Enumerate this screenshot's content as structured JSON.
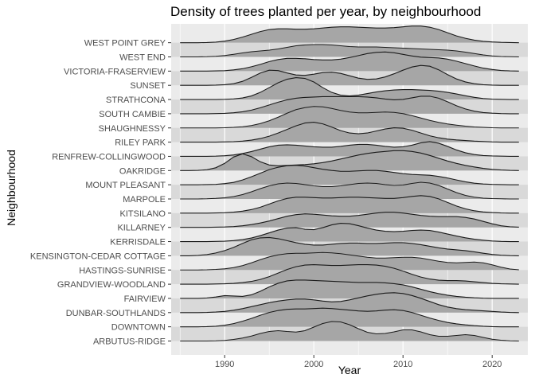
{
  "chart_data": {
    "type": "ridgeline",
    "title": "Density of trees planted per year, by neighbourhood",
    "xlabel": "Year",
    "ylabel": "Neighbourhood",
    "xlim": [
      1984,
      2024
    ],
    "x_ticks": [
      1990,
      2000,
      2010,
      2020
    ],
    "x_tick_labels": [
      "1990",
      "2000",
      "2010",
      "2020"
    ],
    "grid": true,
    "colors": {
      "panel_background": "#ebebeb",
      "band": "#d9d9d9",
      "grid": "#ffffff",
      "fill": "#a6a6a6",
      "line": "#1a1a1a",
      "axis_text": "#4d4d4d"
    },
    "x": [
      1985,
      1986,
      1987,
      1988,
      1989,
      1990,
      1991,
      1992,
      1993,
      1994,
      1995,
      1996,
      1997,
      1998,
      1999,
      2000,
      2001,
      2002,
      2003,
      2004,
      2005,
      2006,
      2007,
      2008,
      2009,
      2010,
      2011,
      2012,
      2013,
      2014,
      2015,
      2016,
      2017,
      2018,
      2019,
      2020,
      2021,
      2022,
      2023
    ],
    "categories": [
      "ARBUTUS-RIDGE",
      "DOWNTOWN",
      "DUNBAR-SOUTHLANDS",
      "FAIRVIEW",
      "GRANDVIEW-WOODLAND",
      "HASTINGS-SUNRISE",
      "KENSINGTON-CEDAR COTTAGE",
      "KERRISDALE",
      "KILLARNEY",
      "KITSILANO",
      "MARPOLE",
      "MOUNT PLEASANT",
      "OAKRIDGE",
      "RENFREW-COLLINGWOOD",
      "RILEY PARK",
      "SHAUGHNESSY",
      "SOUTH CAMBIE",
      "STRATHCONA",
      "SUNSET",
      "VICTORIA-FRASERVIEW",
      "WEST END",
      "WEST POINT GREY"
    ],
    "series": [
      {
        "name": "ARBUTUS-RIDGE",
        "values": [
          0.0,
          0.0,
          0.0,
          0.0,
          0.01,
          0.03,
          0.08,
          0.15,
          0.25,
          0.38,
          0.48,
          0.52,
          0.48,
          0.45,
          0.52,
          0.7,
          0.88,
          0.98,
          0.96,
          0.82,
          0.62,
          0.44,
          0.36,
          0.38,
          0.46,
          0.56,
          0.56,
          0.46,
          0.32,
          0.24,
          0.24,
          0.28,
          0.32,
          0.28,
          0.18,
          0.09,
          0.04,
          0.01,
          0.0
        ]
      },
      {
        "name": "DOWNTOWN",
        "values": [
          0.0,
          0.0,
          0.0,
          0.01,
          0.03,
          0.08,
          0.16,
          0.28,
          0.42,
          0.58,
          0.72,
          0.82,
          0.88,
          0.9,
          0.9,
          0.92,
          0.94,
          0.92,
          0.88,
          0.84,
          0.8,
          0.78,
          0.8,
          0.84,
          0.86,
          0.82,
          0.72,
          0.58,
          0.44,
          0.32,
          0.22,
          0.15,
          0.1,
          0.06,
          0.03,
          0.01,
          0.0,
          0.0,
          0.0
        ]
      },
      {
        "name": "DUNBAR-SOUTHLANDS",
        "values": [
          0.0,
          0.0,
          0.0,
          0.01,
          0.03,
          0.06,
          0.12,
          0.2,
          0.3,
          0.4,
          0.5,
          0.58,
          0.64,
          0.68,
          0.68,
          0.64,
          0.58,
          0.54,
          0.56,
          0.64,
          0.74,
          0.84,
          0.92,
          0.98,
          1.0,
          0.96,
          0.86,
          0.72,
          0.56,
          0.4,
          0.28,
          0.2,
          0.15,
          0.12,
          0.09,
          0.06,
          0.03,
          0.01,
          0.0
        ]
      },
      {
        "name": "FAIRVIEW",
        "values": [
          0.0,
          0.0,
          0.0,
          0.02,
          0.07,
          0.14,
          0.12,
          0.1,
          0.18,
          0.36,
          0.58,
          0.76,
          0.88,
          0.92,
          0.92,
          0.9,
          0.88,
          0.86,
          0.84,
          0.82,
          0.8,
          0.8,
          0.8,
          0.78,
          0.74,
          0.68,
          0.58,
          0.46,
          0.34,
          0.24,
          0.16,
          0.1,
          0.06,
          0.03,
          0.01,
          0.0,
          0.0,
          0.0,
          0.0
        ]
      },
      {
        "name": "GRANDVIEW-WOODLAND",
        "values": [
          0.0,
          0.0,
          0.0,
          0.0,
          0.01,
          0.02,
          0.04,
          0.08,
          0.14,
          0.24,
          0.38,
          0.56,
          0.74,
          0.88,
          0.96,
          0.98,
          0.96,
          0.94,
          0.94,
          0.96,
          0.98,
          0.98,
          0.96,
          0.9,
          0.8,
          0.66,
          0.5,
          0.36,
          0.26,
          0.2,
          0.18,
          0.18,
          0.16,
          0.12,
          0.08,
          0.04,
          0.02,
          0.01,
          0.0
        ]
      },
      {
        "name": "HASTINGS-SUNRISE",
        "values": [
          0.0,
          0.0,
          0.0,
          0.01,
          0.03,
          0.06,
          0.12,
          0.22,
          0.36,
          0.52,
          0.66,
          0.76,
          0.82,
          0.84,
          0.84,
          0.86,
          0.88,
          0.86,
          0.82,
          0.76,
          0.7,
          0.64,
          0.6,
          0.6,
          0.62,
          0.64,
          0.64,
          0.6,
          0.52,
          0.44,
          0.38,
          0.36,
          0.38,
          0.4,
          0.36,
          0.26,
          0.14,
          0.05,
          0.01
        ]
      },
      {
        "name": "KENSINGTON-CEDAR COTTAGE",
        "values": [
          0.0,
          0.0,
          0.02,
          0.06,
          0.14,
          0.26,
          0.42,
          0.62,
          0.8,
          0.9,
          0.92,
          0.86,
          0.76,
          0.66,
          0.58,
          0.54,
          0.54,
          0.58,
          0.62,
          0.64,
          0.64,
          0.62,
          0.62,
          0.64,
          0.66,
          0.66,
          0.62,
          0.56,
          0.48,
          0.4,
          0.34,
          0.3,
          0.26,
          0.2,
          0.13,
          0.07,
          0.03,
          0.01,
          0.0
        ]
      },
      {
        "name": "KERRISDALE",
        "values": [
          0.0,
          0.0,
          0.0,
          0.0,
          0.01,
          0.02,
          0.05,
          0.1,
          0.18,
          0.3,
          0.44,
          0.58,
          0.68,
          0.7,
          0.62,
          0.6,
          0.7,
          0.84,
          0.92,
          0.9,
          0.8,
          0.68,
          0.58,
          0.52,
          0.5,
          0.52,
          0.56,
          0.58,
          0.56,
          0.48,
          0.38,
          0.28,
          0.19,
          0.12,
          0.07,
          0.03,
          0.01,
          0.0,
          0.0
        ]
      },
      {
        "name": "KILLARNEY",
        "values": [
          0.0,
          0.0,
          0.0,
          0.0,
          0.01,
          0.02,
          0.04,
          0.08,
          0.14,
          0.22,
          0.32,
          0.44,
          0.56,
          0.64,
          0.68,
          0.66,
          0.62,
          0.58,
          0.56,
          0.56,
          0.6,
          0.66,
          0.72,
          0.76,
          0.76,
          0.72,
          0.66,
          0.6,
          0.56,
          0.54,
          0.54,
          0.54,
          0.5,
          0.42,
          0.3,
          0.18,
          0.08,
          0.03,
          0.01
        ]
      },
      {
        "name": "KITSILANO",
        "values": [
          0.0,
          0.0,
          0.0,
          0.0,
          0.01,
          0.02,
          0.05,
          0.1,
          0.18,
          0.3,
          0.46,
          0.62,
          0.74,
          0.8,
          0.8,
          0.78,
          0.76,
          0.76,
          0.78,
          0.8,
          0.8,
          0.78,
          0.76,
          0.74,
          0.74,
          0.78,
          0.84,
          0.88,
          0.84,
          0.72,
          0.54,
          0.36,
          0.22,
          0.12,
          0.06,
          0.03,
          0.01,
          0.0,
          0.0
        ]
      },
      {
        "name": "MARPOLE",
        "values": [
          0.0,
          0.0,
          0.0,
          0.01,
          0.03,
          0.06,
          0.12,
          0.22,
          0.36,
          0.52,
          0.66,
          0.76,
          0.8,
          0.78,
          0.72,
          0.66,
          0.62,
          0.62,
          0.66,
          0.72,
          0.78,
          0.8,
          0.78,
          0.72,
          0.68,
          0.7,
          0.78,
          0.84,
          0.8,
          0.68,
          0.5,
          0.32,
          0.18,
          0.09,
          0.04,
          0.02,
          0.01,
          0.0,
          0.0
        ]
      },
      {
        "name": "MOUNT PLEASANT",
        "values": [
          0.0,
          0.0,
          0.0,
          0.01,
          0.02,
          0.06,
          0.12,
          0.24,
          0.4,
          0.58,
          0.76,
          0.88,
          0.96,
          0.98,
          0.94,
          0.86,
          0.78,
          0.72,
          0.68,
          0.68,
          0.7,
          0.72,
          0.72,
          0.68,
          0.62,
          0.56,
          0.52,
          0.5,
          0.48,
          0.42,
          0.34,
          0.24,
          0.15,
          0.08,
          0.04,
          0.02,
          0.01,
          0.0,
          0.0
        ]
      },
      {
        "name": "OAKRIDGE",
        "values": [
          0.0,
          0.0,
          0.01,
          0.04,
          0.14,
          0.36,
          0.68,
          0.84,
          0.7,
          0.44,
          0.28,
          0.24,
          0.26,
          0.28,
          0.3,
          0.34,
          0.4,
          0.48,
          0.58,
          0.68,
          0.78,
          0.86,
          0.92,
          0.96,
          1.0,
          1.0,
          0.96,
          0.88,
          0.76,
          0.62,
          0.48,
          0.36,
          0.26,
          0.18,
          0.11,
          0.06,
          0.03,
          0.01,
          0.0
        ]
      },
      {
        "name": "RENFREW-COLLINGWOOD",
        "values": [
          0.0,
          0.0,
          0.0,
          0.0,
          0.01,
          0.03,
          0.07,
          0.14,
          0.24,
          0.36,
          0.48,
          0.56,
          0.58,
          0.56,
          0.52,
          0.48,
          0.46,
          0.46,
          0.5,
          0.56,
          0.6,
          0.6,
          0.56,
          0.5,
          0.46,
          0.48,
          0.56,
          0.68,
          0.74,
          0.66,
          0.5,
          0.32,
          0.18,
          0.09,
          0.04,
          0.02,
          0.01,
          0.0,
          0.0
        ]
      },
      {
        "name": "RILEY PARK",
        "values": [
          0.0,
          0.0,
          0.0,
          0.0,
          0.0,
          0.01,
          0.02,
          0.05,
          0.1,
          0.18,
          0.3,
          0.46,
          0.64,
          0.82,
          0.96,
          1.0,
          0.92,
          0.76,
          0.58,
          0.46,
          0.42,
          0.46,
          0.56,
          0.66,
          0.72,
          0.7,
          0.6,
          0.46,
          0.32,
          0.22,
          0.15,
          0.11,
          0.08,
          0.05,
          0.03,
          0.01,
          0.0,
          0.0,
          0.0
        ]
      },
      {
        "name": "SHAUGHNESSY",
        "values": [
          0.0,
          0.0,
          0.0,
          0.0,
          0.0,
          0.01,
          0.03,
          0.06,
          0.12,
          0.22,
          0.36,
          0.54,
          0.74,
          0.92,
          1.02,
          1.08,
          1.06,
          0.98,
          0.88,
          0.8,
          0.76,
          0.76,
          0.78,
          0.8,
          0.78,
          0.72,
          0.62,
          0.5,
          0.38,
          0.28,
          0.2,
          0.14,
          0.09,
          0.05,
          0.03,
          0.01,
          0.0,
          0.0,
          0.0
        ]
      },
      {
        "name": "SOUTH CAMBIE",
        "values": [
          0.0,
          0.0,
          0.0,
          0.0,
          0.01,
          0.02,
          0.05,
          0.1,
          0.18,
          0.3,
          0.44,
          0.58,
          0.7,
          0.78,
          0.82,
          0.84,
          0.86,
          0.86,
          0.86,
          0.86,
          0.86,
          0.84,
          0.8,
          0.74,
          0.7,
          0.72,
          0.8,
          0.88,
          0.88,
          0.78,
          0.6,
          0.4,
          0.24,
          0.13,
          0.06,
          0.03,
          0.01,
          0.0,
          0.0
        ]
      },
      {
        "name": "STRATHCONA",
        "values": [
          0.0,
          0.0,
          0.0,
          0.0,
          0.0,
          0.01,
          0.03,
          0.08,
          0.18,
          0.36,
          0.6,
          0.84,
          1.02,
          1.1,
          1.06,
          0.88,
          0.6,
          0.36,
          0.22,
          0.18,
          0.22,
          0.3,
          0.38,
          0.44,
          0.48,
          0.5,
          0.5,
          0.48,
          0.46,
          0.42,
          0.36,
          0.28,
          0.19,
          0.11,
          0.05,
          0.02,
          0.01,
          0.0,
          0.0
        ]
      },
      {
        "name": "SUNSET",
        "values": [
          0.0,
          0.0,
          0.0,
          0.0,
          0.01,
          0.03,
          0.08,
          0.2,
          0.4,
          0.62,
          0.76,
          0.74,
          0.62,
          0.52,
          0.5,
          0.56,
          0.64,
          0.66,
          0.6,
          0.48,
          0.36,
          0.3,
          0.32,
          0.42,
          0.58,
          0.76,
          0.92,
          1.0,
          0.96,
          0.78,
          0.54,
          0.32,
          0.17,
          0.08,
          0.03,
          0.01,
          0.0,
          0.0,
          0.0
        ]
      },
      {
        "name": "VICTORIA-FRASERVIEW",
        "values": [
          0.0,
          0.0,
          0.0,
          0.0,
          0.01,
          0.02,
          0.06,
          0.12,
          0.22,
          0.34,
          0.48,
          0.58,
          0.64,
          0.64,
          0.62,
          0.58,
          0.56,
          0.56,
          0.6,
          0.68,
          0.78,
          0.88,
          0.94,
          0.96,
          0.92,
          0.84,
          0.76,
          0.7,
          0.68,
          0.66,
          0.6,
          0.5,
          0.38,
          0.26,
          0.15,
          0.08,
          0.03,
          0.01,
          0.0
        ]
      },
      {
        "name": "WEST END",
        "values": [
          0.0,
          0.0,
          0.0,
          0.01,
          0.03,
          0.07,
          0.13,
          0.2,
          0.26,
          0.3,
          0.34,
          0.4,
          0.48,
          0.56,
          0.6,
          0.62,
          0.62,
          0.6,
          0.56,
          0.52,
          0.5,
          0.5,
          0.5,
          0.48,
          0.46,
          0.44,
          0.42,
          0.4,
          0.38,
          0.36,
          0.34,
          0.3,
          0.24,
          0.17,
          0.1,
          0.05,
          0.02,
          0.01,
          0.0
        ]
      },
      {
        "name": "WEST POINT GREY",
        "values": [
          0.0,
          0.0,
          0.0,
          0.01,
          0.03,
          0.08,
          0.16,
          0.28,
          0.42,
          0.56,
          0.66,
          0.7,
          0.7,
          0.68,
          0.68,
          0.7,
          0.74,
          0.78,
          0.8,
          0.8,
          0.78,
          0.76,
          0.74,
          0.74,
          0.76,
          0.8,
          0.84,
          0.84,
          0.78,
          0.66,
          0.5,
          0.34,
          0.22,
          0.13,
          0.07,
          0.04,
          0.02,
          0.01,
          0.0
        ]
      }
    ]
  }
}
